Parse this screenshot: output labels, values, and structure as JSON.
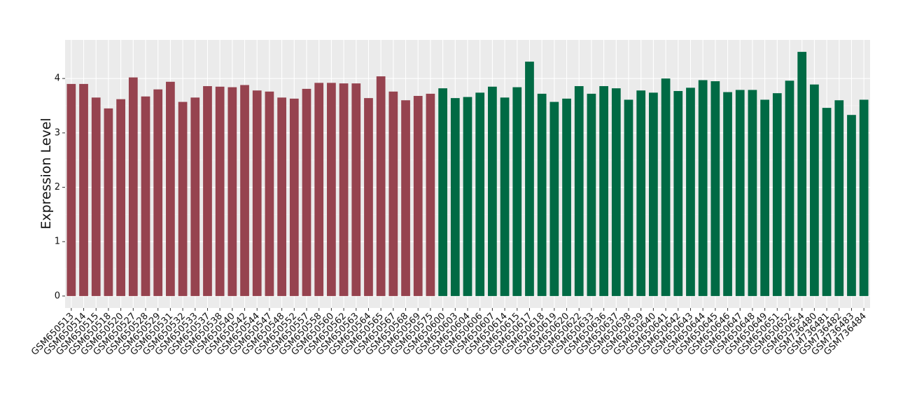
{
  "chart_data": {
    "type": "bar",
    "y_label": "Expression Level",
    "categories": [
      "GSM650513",
      "GSM650514",
      "GSM650515",
      "GSM650518",
      "GSM650520",
      "GSM650527",
      "GSM650528",
      "GSM650529",
      "GSM650531",
      "GSM650532",
      "GSM650533",
      "GSM650537",
      "GSM650538",
      "GSM650540",
      "GSM650542",
      "GSM650544",
      "GSM650547",
      "GSM650548",
      "GSM650552",
      "GSM650557",
      "GSM650558",
      "GSM650560",
      "GSM650562",
      "GSM650563",
      "GSM650564",
      "GSM650565",
      "GSM650567",
      "GSM650568",
      "GSM650569",
      "GSM650575",
      "GSM650600",
      "GSM650603",
      "GSM650604",
      "GSM650606",
      "GSM650607",
      "GSM650614",
      "GSM650615",
      "GSM650617",
      "GSM650618",
      "GSM650619",
      "GSM650620",
      "GSM650622",
      "GSM650633",
      "GSM650636",
      "GSM650637",
      "GSM650638",
      "GSM650639",
      "GSM650640",
      "GSM650641",
      "GSM650642",
      "GSM650643",
      "GSM650644",
      "GSM650645",
      "GSM650646",
      "GSM650647",
      "GSM650648",
      "GSM650649",
      "GSM650651",
      "GSM650652",
      "GSM650654",
      "GSM736480",
      "GSM736481",
      "GSM736482",
      "GSM736483",
      "GSM736484"
    ],
    "values": [
      3.9,
      3.9,
      3.65,
      3.45,
      3.62,
      4.02,
      3.67,
      3.8,
      3.94,
      3.57,
      3.65,
      3.86,
      3.85,
      3.84,
      3.88,
      3.78,
      3.76,
      3.65,
      3.63,
      3.81,
      3.92,
      3.92,
      3.91,
      3.91,
      3.64,
      4.04,
      3.76,
      3.6,
      3.68,
      3.72,
      3.82,
      3.64,
      3.66,
      3.74,
      3.85,
      3.65,
      3.84,
      4.31,
      3.72,
      3.57,
      3.63,
      3.86,
      3.72,
      3.86,
      3.82,
      3.61,
      3.78,
      3.74,
      4.0,
      3.77,
      3.83,
      3.97,
      3.95,
      3.75,
      3.79,
      3.79,
      3.61,
      3.73,
      3.96,
      4.49,
      3.89,
      3.46,
      3.6,
      3.33,
      3.61
    ],
    "colors": [
      "#96434f",
      "#96434f",
      "#96434f",
      "#96434f",
      "#96434f",
      "#96434f",
      "#96434f",
      "#96434f",
      "#96434f",
      "#96434f",
      "#96434f",
      "#96434f",
      "#96434f",
      "#96434f",
      "#96434f",
      "#96434f",
      "#96434f",
      "#96434f",
      "#96434f",
      "#96434f",
      "#96434f",
      "#96434f",
      "#96434f",
      "#96434f",
      "#96434f",
      "#96434f",
      "#96434f",
      "#96434f",
      "#96434f",
      "#96434f",
      "#006a44",
      "#006a44",
      "#006a44",
      "#006a44",
      "#006a44",
      "#006a44",
      "#006a44",
      "#006a44",
      "#006a44",
      "#006a44",
      "#006a44",
      "#006a44",
      "#006a44",
      "#006a44",
      "#006a44",
      "#006a44",
      "#006a44",
      "#006a44",
      "#006a44",
      "#006a44",
      "#006a44",
      "#006a44",
      "#006a44",
      "#006a44",
      "#006a44",
      "#006a44",
      "#006a44",
      "#006a44",
      "#006a44",
      "#006a44",
      "#006a44",
      "#006a44",
      "#006a44",
      "#006a44",
      "#006a44"
    ],
    "ylim": [
      -0.22,
      4.71
    ],
    "yticks": [
      0,
      1,
      2,
      3,
      4
    ],
    "grid": true
  }
}
